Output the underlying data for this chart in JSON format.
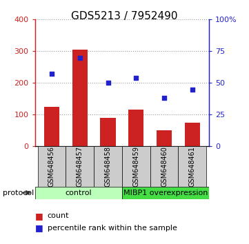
{
  "title": "GDS5213 / 7952490",
  "samples": [
    "GSM648456",
    "GSM648457",
    "GSM648458",
    "GSM648459",
    "GSM648460",
    "GSM648461"
  ],
  "counts": [
    125,
    305,
    90,
    115,
    50,
    75
  ],
  "percentiles": [
    57,
    70,
    50,
    54,
    38,
    45
  ],
  "ylim_left": [
    0,
    400
  ],
  "ylim_right": [
    0,
    100
  ],
  "yticks_left": [
    0,
    100,
    200,
    300,
    400
  ],
  "yticks_right": [
    0,
    25,
    50,
    75,
    100
  ],
  "ytick_labels_left": [
    "0",
    "100",
    "200",
    "300",
    "400"
  ],
  "ytick_labels_right": [
    "0",
    "25",
    "50",
    "75",
    "100%"
  ],
  "bar_color": "#cc2222",
  "scatter_color": "#2222cc",
  "grid_color": "#999999",
  "protocol_groups": [
    {
      "label": "control",
      "start": 0,
      "end": 3,
      "color": "#bbffbb"
    },
    {
      "label": "MIBP1 overexpression",
      "start": 3,
      "end": 6,
      "color": "#44dd44"
    }
  ],
  "legend_count_label": "count",
  "legend_pct_label": "percentile rank within the sample",
  "protocol_label": "protocol",
  "title_fontsize": 11,
  "tick_fontsize": 8,
  "label_fontsize": 7,
  "bar_width": 0.55
}
